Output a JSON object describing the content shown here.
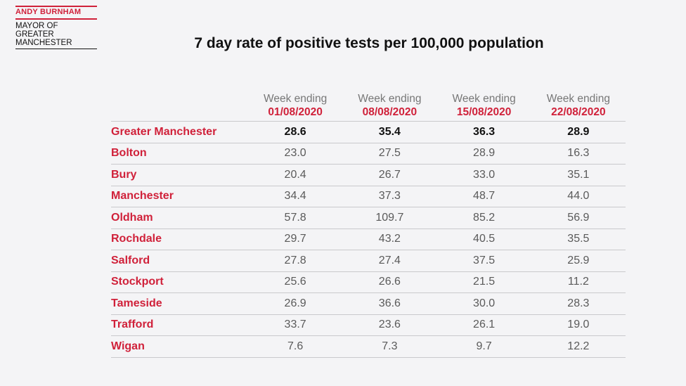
{
  "branding": {
    "name": "ANDY BURNHAM",
    "subtitle_lines": [
      "MAYOR OF",
      "GREATER",
      "MANCHESTER"
    ]
  },
  "title": "7 day rate of positive tests per 100,000 population",
  "table": {
    "columns": [
      {
        "label": "Week ending",
        "date": "01/08/2020"
      },
      {
        "label": "Week ending",
        "date": "08/08/2020"
      },
      {
        "label": "Week ending",
        "date": "15/08/2020"
      },
      {
        "label": "Week ending",
        "date": "22/08/2020"
      }
    ],
    "rows": [
      {
        "area": "Greater Manchester",
        "values": [
          "28.6",
          "35.4",
          "36.3",
          "28.9"
        ]
      },
      {
        "area": "Bolton",
        "values": [
          "23.0",
          "27.5",
          "28.9",
          "16.3"
        ]
      },
      {
        "area": "Bury",
        "values": [
          "20.4",
          "26.7",
          "33.0",
          "35.1"
        ]
      },
      {
        "area": "Manchester",
        "values": [
          "34.4",
          "37.3",
          "48.7",
          "44.0"
        ]
      },
      {
        "area": "Oldham",
        "values": [
          "57.8",
          "109.7",
          "85.2",
          "56.9"
        ]
      },
      {
        "area": "Rochdale",
        "values": [
          "29.7",
          "43.2",
          "40.5",
          "35.5"
        ]
      },
      {
        "area": "Salford",
        "values": [
          "27.8",
          "27.4",
          "37.5",
          "25.9"
        ]
      },
      {
        "area": "Stockport",
        "values": [
          "25.6",
          "26.6",
          "21.5",
          "11.2"
        ]
      },
      {
        "area": "Tameside",
        "values": [
          "26.9",
          "36.6",
          "30.0",
          "28.3"
        ]
      },
      {
        "area": "Trafford",
        "values": [
          "33.7",
          "23.6",
          "26.1",
          "19.0"
        ]
      },
      {
        "area": "Wigan",
        "values": [
          "7.6",
          "7.3",
          "9.7",
          "12.2"
        ]
      }
    ]
  },
  "colors": {
    "accent": "#d0213a",
    "background": "#f4f4f6",
    "text": "#111111",
    "muted": "#777777",
    "rule": "#c9c9cc"
  }
}
